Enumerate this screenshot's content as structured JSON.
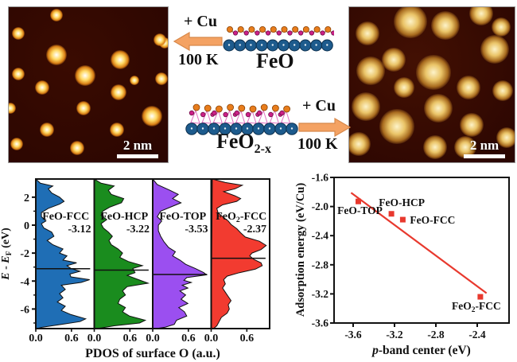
{
  "stm_left": {
    "scalebar": "2 nm",
    "bg": "#3a0b01",
    "spot_core": "#ffffff",
    "spot_mid": "#ffd964",
    "spot_halo": "#d97f15",
    "spots": [
      [
        30,
        5,
        16
      ],
      [
        95,
        21,
        16
      ],
      [
        6,
        17,
        16
      ],
      [
        30,
        31,
        26
      ],
      [
        70,
        34,
        24
      ],
      [
        6,
        43,
        16
      ],
      [
        48,
        44,
        26
      ],
      [
        21,
        52,
        18
      ],
      [
        69,
        55,
        20
      ],
      [
        96,
        46,
        16
      ],
      [
        1,
        65,
        14
      ],
      [
        47,
        65,
        18
      ],
      [
        90,
        70,
        26
      ],
      [
        24,
        79,
        18
      ],
      [
        68,
        79,
        18
      ],
      [
        5,
        88,
        16
      ],
      [
        43,
        91,
        18
      ],
      [
        98,
        23,
        14
      ],
      [
        79,
        47,
        12
      ]
    ]
  },
  "stm_right": {
    "scalebar": "2 nm",
    "bg": "#431003",
    "spot_core": "#fdf3c9",
    "spot_mid": "#eac468",
    "spot_halo": "#a76a1e",
    "spots": [
      [
        11,
        17,
        30
      ],
      [
        37,
        9,
        42
      ],
      [
        58,
        12,
        36
      ],
      [
        80,
        4,
        30
      ],
      [
        88,
        27,
        36
      ],
      [
        27,
        34,
        30
      ],
      [
        13,
        41,
        36
      ],
      [
        51,
        42,
        44
      ],
      [
        33,
        52,
        26
      ],
      [
        72,
        52,
        30
      ],
      [
        93,
        54,
        26
      ],
      [
        10,
        64,
        36
      ],
      [
        54,
        65,
        36
      ],
      [
        29,
        77,
        44
      ],
      [
        74,
        76,
        30
      ],
      [
        6,
        88,
        30
      ],
      [
        52,
        90,
        30
      ],
      [
        95,
        84,
        26
      ],
      [
        70,
        90,
        28
      ],
      [
        92,
        13,
        24
      ]
    ]
  },
  "reaction_top": {
    "reagent": "+ Cu",
    "temp": "100 K",
    "label": "FeO"
  },
  "reaction_bottom": {
    "reagent": "+ Cu",
    "temp": "100 K",
    "label_base": "FeO",
    "label_sub": "2-x"
  },
  "arrow_color": "#f4a263",
  "arrow_stroke": "#d8884a",
  "models": {
    "fe_color": "#1d5b8d",
    "fe_stroke": "#0c2f4d",
    "o_color": "#e87d1c",
    "o_stroke": "#8a4205",
    "omg_color": "#cc2088",
    "omg_stroke": "#701048",
    "bond_color": "#e070c0",
    "feo_fe_count": 10,
    "feo2x_fe_count": 10
  },
  "chart_data": [
    {
      "type": "area",
      "xlabel": "PDOS of surface O (a.u.)",
      "ylabel": "E - EF (eV)",
      "ylabel_parts": [
        {
          "t": "E",
          "style": "italic"
        },
        {
          "t": " - "
        },
        {
          "t": "E",
          "style": "italic"
        },
        {
          "t": "F",
          "style": "sub"
        },
        {
          "t": " (eV)"
        }
      ],
      "ylim": [
        -7.4,
        3.3
      ],
      "yticks": [
        2,
        0,
        -2,
        -4,
        -6
      ],
      "yticks_minor": [
        1,
        -1,
        -3,
        -5,
        -7
      ],
      "xticks": [
        0.0,
        0.6
      ],
      "panels": [
        {
          "label": "FeO-FCC",
          "label_parts": [
            {
              "t": "FeO-FCC"
            }
          ],
          "band_center": -3.12,
          "color": "#1f6eb5",
          "points": [
            [
              3.3,
              0.0
            ],
            [
              3.0,
              0.08
            ],
            [
              2.8,
              0.3
            ],
            [
              2.6,
              0.22
            ],
            [
              2.3,
              0.28
            ],
            [
              2.0,
              0.42
            ],
            [
              1.7,
              0.5
            ],
            [
              1.5,
              0.42
            ],
            [
              1.2,
              0.22
            ],
            [
              0.9,
              0.1
            ],
            [
              0.6,
              0.1
            ],
            [
              0.3,
              0.18
            ],
            [
              0.1,
              0.1
            ],
            [
              -0.2,
              0.14
            ],
            [
              -0.5,
              0.28
            ],
            [
              -0.8,
              0.32
            ],
            [
              -1.1,
              0.2
            ],
            [
              -1.4,
              0.3
            ],
            [
              -1.7,
              0.48
            ],
            [
              -2.0,
              0.42
            ],
            [
              -2.2,
              0.55
            ],
            [
              -2.5,
              0.48
            ],
            [
              -2.7,
              0.72
            ],
            [
              -2.9,
              0.55
            ],
            [
              -3.1,
              0.62
            ],
            [
              -3.3,
              0.78
            ],
            [
              -3.5,
              0.6
            ],
            [
              -3.7,
              0.62
            ],
            [
              -3.9,
              0.95
            ],
            [
              -4.1,
              0.8
            ],
            [
              -4.3,
              0.45
            ],
            [
              -4.6,
              0.52
            ],
            [
              -4.9,
              0.42
            ],
            [
              -5.2,
              0.48
            ],
            [
              -5.5,
              0.38
            ],
            [
              -5.8,
              0.52
            ],
            [
              -6.1,
              0.45
            ],
            [
              -6.4,
              0.62
            ],
            [
              -6.7,
              0.88
            ],
            [
              -6.9,
              0.78
            ],
            [
              -7.1,
              0.45
            ],
            [
              -7.3,
              0.12
            ],
            [
              -7.4,
              0.02
            ]
          ]
        },
        {
          "label": "FeO-HCP",
          "label_parts": [
            {
              "t": "FeO-HCP"
            }
          ],
          "band_center": -3.22,
          "color": "#1a8c1e",
          "points": [
            [
              3.3,
              0.0
            ],
            [
              3.0,
              0.12
            ],
            [
              2.8,
              0.35
            ],
            [
              2.5,
              0.25
            ],
            [
              2.2,
              0.3
            ],
            [
              1.9,
              0.52
            ],
            [
              1.6,
              0.48
            ],
            [
              1.3,
              0.28
            ],
            [
              1.0,
              0.15
            ],
            [
              0.7,
              0.12
            ],
            [
              0.4,
              0.22
            ],
            [
              0.1,
              0.12
            ],
            [
              -0.2,
              0.16
            ],
            [
              -0.5,
              0.25
            ],
            [
              -0.8,
              0.32
            ],
            [
              -1.1,
              0.26
            ],
            [
              -1.4,
              0.3
            ],
            [
              -1.7,
              0.42
            ],
            [
              -2.0,
              0.5
            ],
            [
              -2.3,
              0.45
            ],
            [
              -2.6,
              0.6
            ],
            [
              -2.9,
              0.85
            ],
            [
              -3.1,
              0.68
            ],
            [
              -3.4,
              0.72
            ],
            [
              -3.6,
              0.58
            ],
            [
              -3.9,
              0.78
            ],
            [
              -4.15,
              0.95
            ],
            [
              -4.4,
              0.58
            ],
            [
              -4.7,
              0.5
            ],
            [
              -5.0,
              0.55
            ],
            [
              -5.3,
              0.45
            ],
            [
              -5.6,
              0.42
            ],
            [
              -5.9,
              0.55
            ],
            [
              -6.2,
              0.5
            ],
            [
              -6.5,
              0.62
            ],
            [
              -6.8,
              0.9
            ],
            [
              -7.0,
              0.8
            ],
            [
              -7.2,
              0.35
            ],
            [
              -7.4,
              0.05
            ]
          ]
        },
        {
          "label": "FeO-TOP",
          "label_parts": [
            {
              "t": "FeO-TOP"
            }
          ],
          "band_center": -3.53,
          "color": "#9b4ff0",
          "points": [
            [
              3.3,
              0.0
            ],
            [
              2.9,
              0.08
            ],
            [
              2.5,
              0.3
            ],
            [
              2.2,
              0.45
            ],
            [
              1.9,
              0.35
            ],
            [
              1.6,
              0.5
            ],
            [
              1.3,
              0.32
            ],
            [
              1.0,
              0.14
            ],
            [
              0.6,
              0.08
            ],
            [
              0.3,
              0.16
            ],
            [
              0.0,
              0.1
            ],
            [
              -0.4,
              0.1
            ],
            [
              -0.8,
              0.14
            ],
            [
              -1.2,
              0.2
            ],
            [
              -1.6,
              0.28
            ],
            [
              -1.9,
              0.4
            ],
            [
              -2.2,
              0.35
            ],
            [
              -2.5,
              0.48
            ],
            [
              -2.8,
              0.58
            ],
            [
              -3.1,
              0.75
            ],
            [
              -3.4,
              0.9
            ],
            [
              -3.55,
              0.95
            ],
            [
              -3.75,
              0.6
            ],
            [
              -3.95,
              0.55
            ],
            [
              -4.1,
              0.68
            ],
            [
              -4.3,
              0.52
            ],
            [
              -4.5,
              0.62
            ],
            [
              -4.7,
              0.48
            ],
            [
              -5.0,
              0.58
            ],
            [
              -5.3,
              0.5
            ],
            [
              -5.6,
              0.62
            ],
            [
              -5.9,
              0.46
            ],
            [
              -6.2,
              0.56
            ],
            [
              -6.5,
              0.6
            ],
            [
              -6.8,
              0.42
            ],
            [
              -7.1,
              0.38
            ],
            [
              -7.3,
              0.22
            ],
            [
              -7.4,
              0.06
            ]
          ]
        },
        {
          "label": "FeO2-FCC",
          "label_parts": [
            {
              "t": "FeO"
            },
            {
              "t": "2",
              "style": "sub"
            },
            {
              "t": "-FCC"
            }
          ],
          "band_center": -2.37,
          "color": "#f23b30",
          "points": [
            [
              3.3,
              0.02
            ],
            [
              3.05,
              0.25
            ],
            [
              2.85,
              0.55
            ],
            [
              2.6,
              0.42
            ],
            [
              2.4,
              0.22
            ],
            [
              2.1,
              0.42
            ],
            [
              1.9,
              0.52
            ],
            [
              1.7,
              0.45
            ],
            [
              1.45,
              0.2
            ],
            [
              1.2,
              0.1
            ],
            [
              0.9,
              0.12
            ],
            [
              0.6,
              0.2
            ],
            [
              0.3,
              0.3
            ],
            [
              0.05,
              0.35
            ],
            [
              -0.25,
              0.45
            ],
            [
              -0.55,
              0.52
            ],
            [
              -0.85,
              0.6
            ],
            [
              -1.15,
              0.85
            ],
            [
              -1.45,
              0.97
            ],
            [
              -1.75,
              0.88
            ],
            [
              -2.0,
              0.72
            ],
            [
              -2.2,
              0.68
            ],
            [
              -2.45,
              0.75
            ],
            [
              -2.7,
              0.88
            ],
            [
              -2.9,
              0.9
            ],
            [
              -3.15,
              0.78
            ],
            [
              -3.4,
              0.5
            ],
            [
              -3.65,
              0.28
            ],
            [
              -3.9,
              0.22
            ],
            [
              -4.2,
              0.25
            ],
            [
              -4.5,
              0.2
            ],
            [
              -4.8,
              0.25
            ],
            [
              -5.1,
              0.3
            ],
            [
              -5.4,
              0.35
            ],
            [
              -5.7,
              0.3
            ],
            [
              -6.0,
              0.32
            ],
            [
              -6.3,
              0.28
            ],
            [
              -6.6,
              0.18
            ],
            [
              -6.9,
              0.14
            ],
            [
              -7.2,
              0.1
            ],
            [
              -7.4,
              0.04
            ]
          ]
        }
      ]
    },
    {
      "type": "scatter",
      "xlabel": "p-band center (eV)",
      "xlabel_parts": [
        {
          "t": "p",
          "style": "italic"
        },
        {
          "t": "-band center (eV)"
        }
      ],
      "ylabel": "Adsorption energy (eV/Cu)",
      "ylabel_parts": [
        {
          "t": "Adsorption energy (eV/Cu)"
        }
      ],
      "xlim": [
        -3.785,
        -2.09
      ],
      "ylim": [
        -3.6,
        -1.6
      ],
      "xticks": [
        -3.6,
        -3.2,
        -2.8,
        -2.4
      ],
      "yticks": [
        -1.6,
        -2.0,
        -2.4,
        -2.8,
        -3.2,
        -3.6
      ],
      "marker_color": "#e8392e",
      "line": {
        "x1": -3.62,
        "y1": -1.81,
        "x2": -2.31,
        "y2": -3.19
      },
      "points": [
        {
          "label": "FeO-TOP",
          "label_parts": [
            {
              "t": "FeO-TOP"
            }
          ],
          "x": -3.55,
          "y": -1.93,
          "label_pos": "below"
        },
        {
          "label": "FeO-HCP",
          "label_parts": [
            {
              "t": "FeO-HCP"
            }
          ],
          "x": -3.23,
          "y": -2.1,
          "label_pos": "above"
        },
        {
          "label": "FeO-FCC",
          "label_parts": [
            {
              "t": "FeO-FCC"
            }
          ],
          "x": -3.12,
          "y": -2.18,
          "label_pos": "right"
        },
        {
          "label": "FeO2-FCC",
          "label_parts": [
            {
              "t": "FeO"
            },
            {
              "t": "2",
              "style": "sub"
            },
            {
              "t": "-FCC"
            }
          ],
          "x": -2.37,
          "y": -3.24,
          "label_pos": "below-left"
        }
      ]
    }
  ]
}
